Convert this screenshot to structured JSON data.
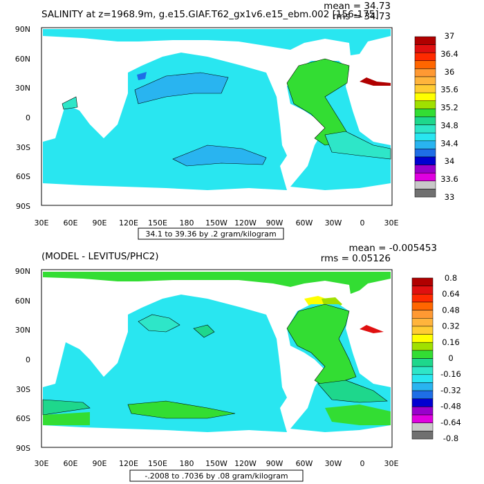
{
  "panels": [
    {
      "id": "top",
      "title": "SALINITY at z=1968.9m, g.e15.GIAF.T62_gx1v6.e15_ebm.002 [156-175]",
      "stats": {
        "mean": "mean = 34.73",
        "rms": "rms = 34.73"
      },
      "lat_labels": [
        "90N",
        "60N",
        "30N",
        "0",
        "30S",
        "60S",
        "90S"
      ],
      "lon_labels": [
        "30E",
        "60E",
        "90E",
        "120E",
        "150E",
        "180",
        "150W",
        "120W",
        "90W",
        "60W",
        "30W",
        "0",
        "30E"
      ],
      "range_caption": "34.1 to 39.36 by .2 gram/kilogram",
      "colorbar": {
        "colors": [
          "#b00000",
          "#e01010",
          "#ff2a00",
          "#ff6600",
          "#ff9933",
          "#ffb43c",
          "#ffcc33",
          "#ffff00",
          "#a0e000",
          "#33dd33",
          "#1ed78c",
          "#2ee6c8",
          "#29e6f0",
          "#29b4f0",
          "#1e6ee6",
          "#0000d0",
          "#9900cc",
          "#e000e0",
          "#c8c8c8",
          "#707070"
        ],
        "labels": [
          "37",
          "36.4",
          "36",
          "35.6",
          "35.2",
          "34.8",
          "34.4",
          "34",
          "33.6",
          "33"
        ]
      }
    },
    {
      "id": "bottom",
      "title": "(MODEL - LEVITUS/PHC2)",
      "stats": {
        "mean": "mean = -0.005453",
        "rms": "rms = 0.05126"
      },
      "lat_labels": [
        "90N",
        "60N",
        "30N",
        "0",
        "30S",
        "60S",
        "90S"
      ],
      "lon_labels": [
        "30E",
        "60E",
        "90E",
        "120E",
        "150E",
        "180",
        "150W",
        "120W",
        "90W",
        "60W",
        "30W",
        "0",
        "30E"
      ],
      "range_caption": "-.2008 to .7036 by .08 gram/kilogram",
      "colorbar": {
        "colors": [
          "#b00000",
          "#e01010",
          "#ff2a00",
          "#ff6600",
          "#ff9933",
          "#ffb43c",
          "#ffcc33",
          "#ffff00",
          "#a0e000",
          "#33dd33",
          "#1ed78c",
          "#2ee6c8",
          "#29e6f0",
          "#29b4f0",
          "#1e6ee6",
          "#0000d0",
          "#9900cc",
          "#e000e0",
          "#c8c8c8",
          "#707070"
        ],
        "labels": [
          "0.8",
          "0.64",
          "0.48",
          "0.32",
          "0.16",
          "0",
          "-0.16",
          "-0.32",
          "-0.48",
          "-0.64",
          "-0.8"
        ]
      }
    }
  ]
}
